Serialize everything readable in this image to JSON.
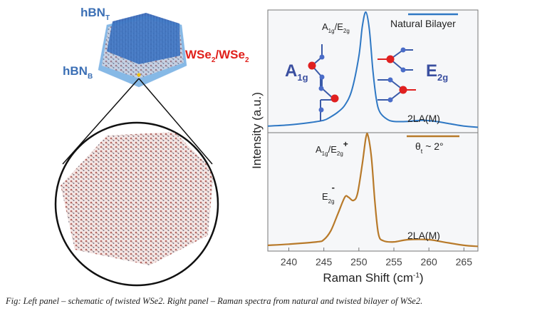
{
  "left_panel": {
    "labels": {
      "hbn_top": {
        "main": "hBN",
        "sub": "T"
      },
      "hbn_bottom": {
        "main": "hBN",
        "sub": "B"
      },
      "wse2": {
        "a": "WSe",
        "a_sub": "2",
        "b": "/WSe",
        "b_sub": "2"
      }
    },
    "colors": {
      "hbn": "#4a90d9",
      "hbn_label": "#3b6fb5",
      "wse2_label": "#e0201b",
      "lattice": "#c9807a"
    }
  },
  "chart_data": {
    "type": "line",
    "xlabel": "Raman Shift (cm",
    "xlabel_sup": "-1",
    "xlabel_end": ")",
    "ylabel": "Intensity (a.u.)",
    "xlim": [
      237,
      267
    ],
    "xticks": [
      "240",
      "245",
      "250",
      "255",
      "260",
      "265"
    ],
    "grid": false,
    "panels": [
      {
        "legend": "Natural Bilayer",
        "legend_placement": "top-right",
        "color": "#2f78c4",
        "annotations": {
          "peak": {
            "a": "A",
            "a_sub": "1g",
            "b": "/E",
            "b_sub": "2g"
          },
          "mode_left": {
            "main": "A",
            "sub": "1g"
          },
          "mode_right": {
            "main": "E",
            "sub": "2g"
          },
          "second": "2LA(M)"
        },
        "x": [
          237,
          240,
          243,
          245,
          246,
          247,
          248,
          249,
          250,
          250.5,
          251,
          251.5,
          252,
          252.5,
          253,
          254,
          255,
          257,
          259,
          261,
          263,
          265,
          267
        ],
        "y": [
          0.02,
          0.03,
          0.05,
          0.07,
          0.1,
          0.14,
          0.2,
          0.33,
          0.62,
          0.88,
          1.0,
          0.85,
          0.5,
          0.25,
          0.14,
          0.08,
          0.06,
          0.06,
          0.07,
          0.06,
          0.04,
          0.02,
          0.01
        ]
      },
      {
        "legend": "θ",
        "legend_sub": "t",
        "legend_end": " ~ 2°",
        "legend_placement": "top-right",
        "color": "#b87a2a",
        "annotations": {
          "peak": {
            "a": "A",
            "a_sub": "1g",
            "b": "/E",
            "b_sub": "2g",
            "sup": "+"
          },
          "shoulder": {
            "main": "E",
            "sub": "2g",
            "sup": "-"
          },
          "second": "2LA(M)"
        },
        "x": [
          237,
          240,
          244,
          245,
          246,
          247,
          248,
          248.5,
          249.2,
          249.8,
          250.5,
          251,
          251.3,
          251.8,
          252.3,
          252.8,
          253.5,
          255,
          257,
          260,
          262,
          265,
          267
        ],
        "y": [
          0.02,
          0.03,
          0.05,
          0.07,
          0.15,
          0.3,
          0.45,
          0.45,
          0.42,
          0.48,
          0.75,
          0.98,
          1.0,
          0.8,
          0.4,
          0.12,
          0.06,
          0.05,
          0.07,
          0.07,
          0.05,
          0.02,
          0.01
        ]
      }
    ]
  },
  "caption": "Fig: Left panel – schematic of twisted WSe2. Right panel – Raman spectra from natural and twisted bilayer of WSe2."
}
